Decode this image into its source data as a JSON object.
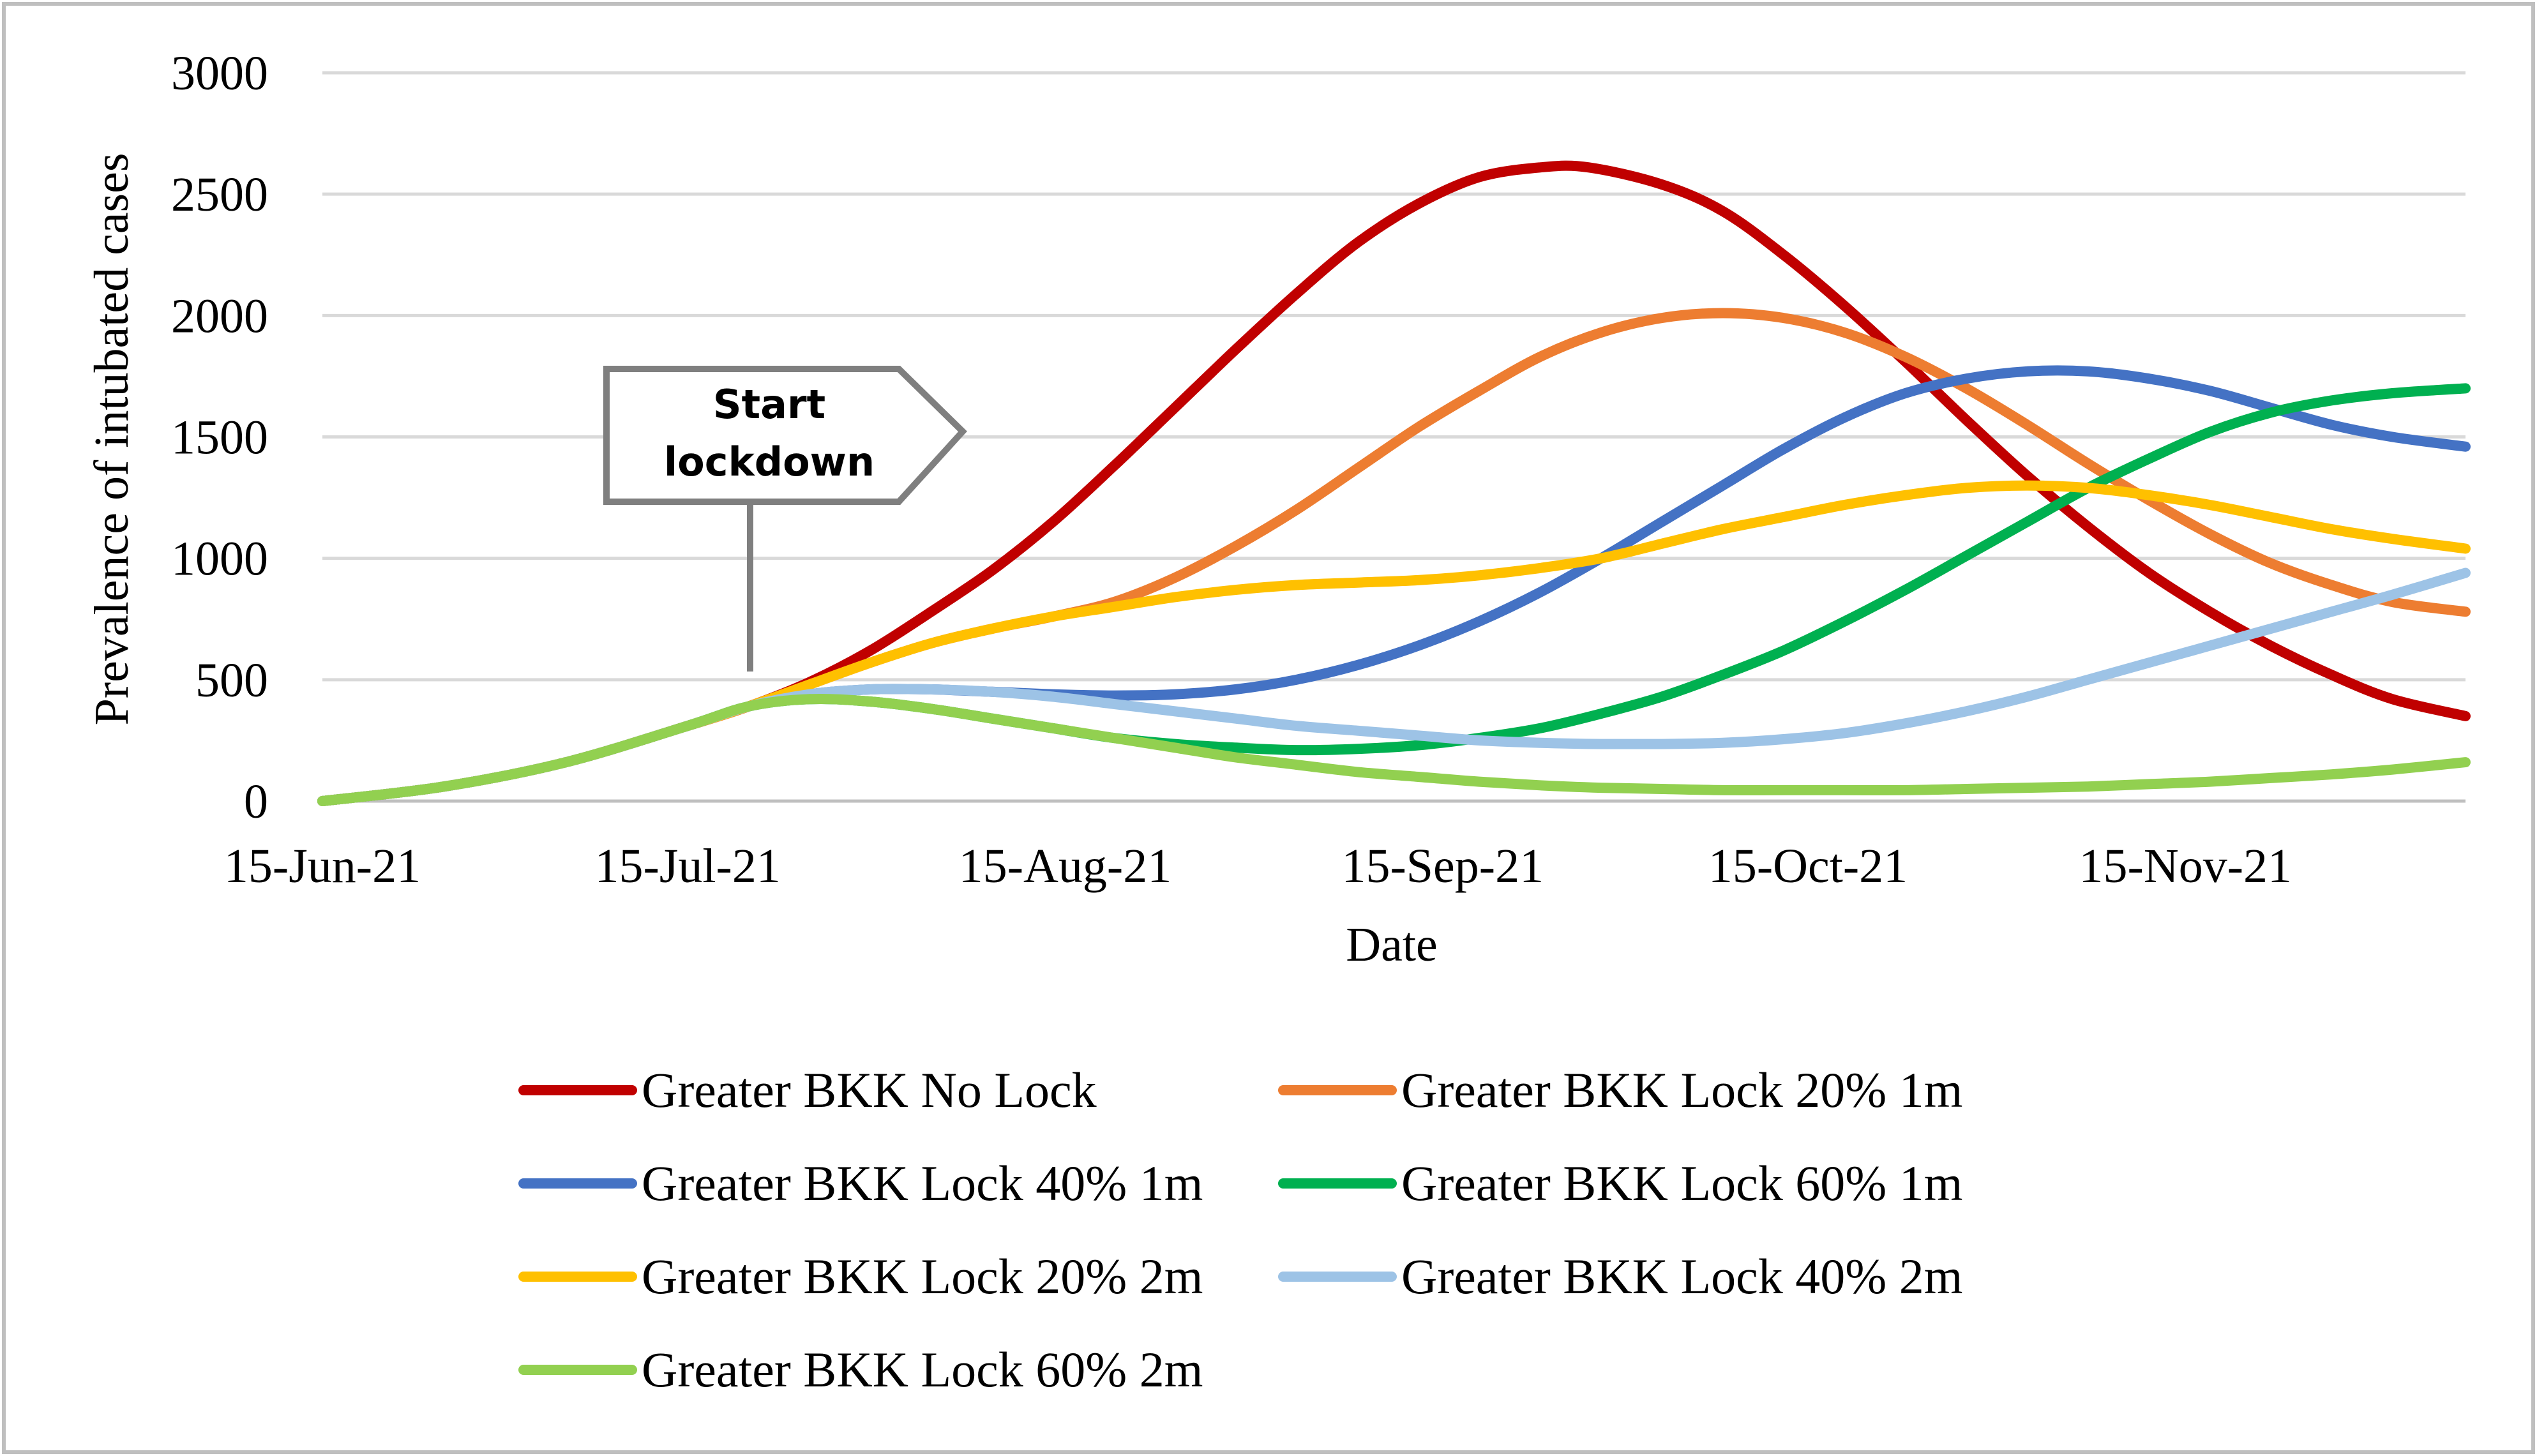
{
  "chart_data": {
    "type": "line",
    "title": "",
    "xlabel": "Date",
    "ylabel": "Prevalence of intubated cases",
    "ylim": [
      0,
      3000
    ],
    "yticks": [
      0,
      500,
      1000,
      1500,
      2000,
      2500,
      3000
    ],
    "xlim_day": [
      0,
      176
    ],
    "xticks": [
      {
        "day": 0,
        "label": "15-Jun-21"
      },
      {
        "day": 30,
        "label": "15-Jul-21"
      },
      {
        "day": 61,
        "label": "15-Aug-21"
      },
      {
        "day": 92,
        "label": "15-Sep-21"
      },
      {
        "day": 122,
        "label": "15-Oct-21"
      },
      {
        "day": 153,
        "label": "15-Nov-21"
      }
    ],
    "grid": true,
    "legend_position": "bottom",
    "annotation": {
      "lines": [
        "Start",
        "lockdown"
      ],
      "day": 35
    },
    "series": [
      {
        "name": "Greater BKK No Lock",
        "color": "#C00000",
        "points": [
          [
            0,
            0
          ],
          [
            10,
            60
          ],
          [
            20,
            160
          ],
          [
            30,
            310
          ],
          [
            35,
            390
          ],
          [
            40,
            490
          ],
          [
            45,
            620
          ],
          [
            50,
            780
          ],
          [
            55,
            950
          ],
          [
            60,
            1150
          ],
          [
            65,
            1380
          ],
          [
            70,
            1620
          ],
          [
            75,
            1860
          ],
          [
            80,
            2090
          ],
          [
            85,
            2300
          ],
          [
            90,
            2460
          ],
          [
            95,
            2570
          ],
          [
            100,
            2610
          ],
          [
            104,
            2610
          ],
          [
            110,
            2540
          ],
          [
            115,
            2430
          ],
          [
            120,
            2250
          ],
          [
            125,
            2040
          ],
          [
            130,
            1810
          ],
          [
            135,
            1570
          ],
          [
            140,
            1340
          ],
          [
            145,
            1130
          ],
          [
            150,
            940
          ],
          [
            155,
            780
          ],
          [
            160,
            640
          ],
          [
            165,
            520
          ],
          [
            170,
            420
          ],
          [
            176,
            350
          ]
        ]
      },
      {
        "name": "Greater BKK Lock 20% 1m",
        "color": "#ED7D31",
        "points": [
          [
            0,
            0
          ],
          [
            10,
            60
          ],
          [
            20,
            160
          ],
          [
            30,
            310
          ],
          [
            35,
            390
          ],
          [
            40,
            480
          ],
          [
            45,
            570
          ],
          [
            50,
            650
          ],
          [
            55,
            710
          ],
          [
            60,
            760
          ],
          [
            65,
            820
          ],
          [
            70,
            920
          ],
          [
            75,
            1050
          ],
          [
            80,
            1200
          ],
          [
            85,
            1370
          ],
          [
            90,
            1540
          ],
          [
            95,
            1690
          ],
          [
            100,
            1830
          ],
          [
            105,
            1930
          ],
          [
            110,
            1990
          ],
          [
            115,
            2010
          ],
          [
            120,
            1990
          ],
          [
            125,
            1930
          ],
          [
            130,
            1830
          ],
          [
            135,
            1700
          ],
          [
            140,
            1550
          ],
          [
            145,
            1390
          ],
          [
            150,
            1240
          ],
          [
            155,
            1100
          ],
          [
            160,
            980
          ],
          [
            165,
            890
          ],
          [
            170,
            820
          ],
          [
            176,
            780
          ]
        ]
      },
      {
        "name": "Greater BKK Lock 40% 1m",
        "color": "#4472C4",
        "points": [
          [
            0,
            0
          ],
          [
            10,
            60
          ],
          [
            20,
            160
          ],
          [
            30,
            310
          ],
          [
            35,
            390
          ],
          [
            40,
            440
          ],
          [
            45,
            460
          ],
          [
            50,
            460
          ],
          [
            55,
            450
          ],
          [
            60,
            440
          ],
          [
            65,
            435
          ],
          [
            70,
            440
          ],
          [
            75,
            460
          ],
          [
            80,
            500
          ],
          [
            85,
            560
          ],
          [
            90,
            640
          ],
          [
            95,
            740
          ],
          [
            100,
            860
          ],
          [
            105,
            1000
          ],
          [
            110,
            1150
          ],
          [
            115,
            1300
          ],
          [
            120,
            1450
          ],
          [
            125,
            1580
          ],
          [
            130,
            1680
          ],
          [
            135,
            1740
          ],
          [
            140,
            1770
          ],
          [
            145,
            1770
          ],
          [
            150,
            1740
          ],
          [
            155,
            1690
          ],
          [
            160,
            1620
          ],
          [
            165,
            1550
          ],
          [
            170,
            1500
          ],
          [
            176,
            1460
          ]
        ]
      },
      {
        "name": "Greater BKK Lock 60% 1m",
        "color": "#00B050",
        "points": [
          [
            0,
            0
          ],
          [
            10,
            60
          ],
          [
            20,
            160
          ],
          [
            30,
            310
          ],
          [
            35,
            390
          ],
          [
            40,
            420
          ],
          [
            45,
            410
          ],
          [
            50,
            380
          ],
          [
            55,
            340
          ],
          [
            60,
            300
          ],
          [
            65,
            260
          ],
          [
            70,
            235
          ],
          [
            75,
            220
          ],
          [
            80,
            210
          ],
          [
            85,
            215
          ],
          [
            90,
            230
          ],
          [
            95,
            260
          ],
          [
            100,
            300
          ],
          [
            105,
            360
          ],
          [
            110,
            430
          ],
          [
            115,
            520
          ],
          [
            120,
            620
          ],
          [
            125,
            740
          ],
          [
            130,
            870
          ],
          [
            135,
            1010
          ],
          [
            140,
            1150
          ],
          [
            145,
            1290
          ],
          [
            150,
            1410
          ],
          [
            155,
            1520
          ],
          [
            160,
            1600
          ],
          [
            165,
            1650
          ],
          [
            170,
            1680
          ],
          [
            176,
            1700
          ]
        ]
      },
      {
        "name": "Greater BKK Lock 20% 2m",
        "color": "#FFC000",
        "points": [
          [
            0,
            0
          ],
          [
            10,
            60
          ],
          [
            20,
            160
          ],
          [
            30,
            310
          ],
          [
            35,
            390
          ],
          [
            40,
            480
          ],
          [
            45,
            570
          ],
          [
            50,
            650
          ],
          [
            55,
            710
          ],
          [
            60,
            760
          ],
          [
            65,
            800
          ],
          [
            70,
            840
          ],
          [
            75,
            870
          ],
          [
            80,
            890
          ],
          [
            85,
            900
          ],
          [
            90,
            910
          ],
          [
            95,
            930
          ],
          [
            100,
            960
          ],
          [
            105,
            1000
          ],
          [
            110,
            1060
          ],
          [
            115,
            1120
          ],
          [
            120,
            1170
          ],
          [
            125,
            1220
          ],
          [
            130,
            1260
          ],
          [
            135,
            1290
          ],
          [
            140,
            1300
          ],
          [
            145,
            1290
          ],
          [
            150,
            1260
          ],
          [
            155,
            1220
          ],
          [
            160,
            1170
          ],
          [
            165,
            1120
          ],
          [
            170,
            1080
          ],
          [
            176,
            1040
          ]
        ]
      },
      {
        "name": "Greater BKK Lock 40% 2m",
        "color": "#9DC3E6",
        "points": [
          [
            0,
            0
          ],
          [
            10,
            60
          ],
          [
            20,
            160
          ],
          [
            30,
            310
          ],
          [
            35,
            390
          ],
          [
            40,
            440
          ],
          [
            45,
            460
          ],
          [
            50,
            460
          ],
          [
            55,
            450
          ],
          [
            60,
            430
          ],
          [
            65,
            400
          ],
          [
            70,
            370
          ],
          [
            75,
            340
          ],
          [
            80,
            310
          ],
          [
            85,
            290
          ],
          [
            90,
            270
          ],
          [
            95,
            250
          ],
          [
            100,
            240
          ],
          [
            105,
            235
          ],
          [
            110,
            235
          ],
          [
            115,
            240
          ],
          [
            120,
            255
          ],
          [
            125,
            280
          ],
          [
            130,
            320
          ],
          [
            135,
            370
          ],
          [
            140,
            430
          ],
          [
            145,
            500
          ],
          [
            150,
            570
          ],
          [
            155,
            640
          ],
          [
            160,
            710
          ],
          [
            165,
            780
          ],
          [
            170,
            850
          ],
          [
            176,
            940
          ]
        ]
      },
      {
        "name": "Greater BKK Lock 60% 2m",
        "color": "#92D050",
        "points": [
          [
            0,
            0
          ],
          [
            10,
            60
          ],
          [
            20,
            160
          ],
          [
            30,
            310
          ],
          [
            35,
            390
          ],
          [
            40,
            420
          ],
          [
            45,
            410
          ],
          [
            50,
            380
          ],
          [
            55,
            340
          ],
          [
            60,
            300
          ],
          [
            65,
            260
          ],
          [
            70,
            220
          ],
          [
            75,
            180
          ],
          [
            80,
            150
          ],
          [
            85,
            120
          ],
          [
            90,
            100
          ],
          [
            95,
            80
          ],
          [
            100,
            65
          ],
          [
            105,
            55
          ],
          [
            110,
            50
          ],
          [
            115,
            45
          ],
          [
            120,
            45
          ],
          [
            125,
            45
          ],
          [
            130,
            45
          ],
          [
            135,
            50
          ],
          [
            140,
            55
          ],
          [
            145,
            60
          ],
          [
            150,
            70
          ],
          [
            155,
            80
          ],
          [
            160,
            95
          ],
          [
            165,
            110
          ],
          [
            170,
            130
          ],
          [
            176,
            160
          ]
        ]
      }
    ]
  }
}
